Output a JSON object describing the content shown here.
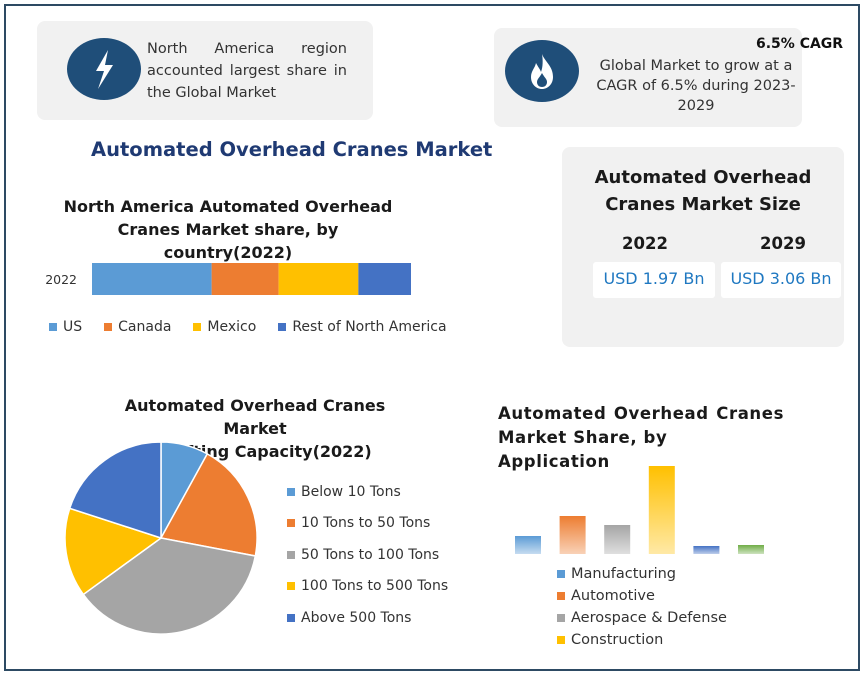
{
  "info_left": {
    "text_line1": "North America region",
    "text_line2": "accounted largest share in",
    "text_line3": "the Global Market",
    "icon": "lightning-bolt-icon"
  },
  "info_right": {
    "cagr_label": "6.5% CAGR",
    "text_line1": "Global Market to grow at a",
    "text_line2": "CAGR of 6.5% during 2023-",
    "text_line3": "2029",
    "icon": "flame-icon"
  },
  "main_title": "Automated Overhead Cranes Market",
  "market_size": {
    "title_line1": "Automated Overhead",
    "title_line2": "Cranes Market Size",
    "year1": "2022",
    "value1": "USD 1.97 Bn",
    "year2": "2029",
    "value2": "USD 3.06 Bn"
  },
  "colors": {
    "blue": "#5b9bd5",
    "orange": "#ed7d31",
    "gray": "#a5a5a5",
    "yellow": "#ffc000",
    "dark_blue": "#4472c4",
    "green": "#70ad47",
    "icon_bg": "#1f4e79"
  },
  "chart_data": [
    {
      "type": "bar",
      "orientation": "horizontal-stacked",
      "title_line1": "North America Automated Overhead",
      "title_line2": "Cranes Market share, by country(2022)",
      "categories": [
        "2022"
      ],
      "series": [
        {
          "name": "US",
          "values": [
            37.5
          ]
        },
        {
          "name": "Canada",
          "values": [
            21
          ]
        },
        {
          "name": "Mexico",
          "values": [
            25
          ]
        },
        {
          "name": "Rest of North America",
          "values": [
            16.5
          ]
        }
      ],
      "legend_position": "bottom"
    },
    {
      "type": "pie",
      "title_line1": "Automated Overhead Cranes Market",
      "title_line2": "by, Lifting Capacity(2022)",
      "labels": [
        "Below 10 Tons",
        "10 Tons to 50 Tons",
        "50 Tons to 100 Tons",
        "100 Tons to 500 Tons",
        "Above 500 Tons"
      ],
      "values": [
        8,
        20,
        37,
        15,
        20
      ],
      "legend_position": "right"
    },
    {
      "type": "bar",
      "title_line1": "Automated Overhead Cranes",
      "title_line2": "Market Share, by Application",
      "series": [
        {
          "name": "Manufacturing",
          "values": [
            18
          ]
        },
        {
          "name": "Automotive",
          "values": [
            38
          ]
        },
        {
          "name": "Aerospace & Defense",
          "values": [
            29
          ]
        },
        {
          "name": "Construction",
          "values": [
            88
          ]
        },
        {
          "name": "",
          "values": [
            8
          ]
        },
        {
          "name": "",
          "values": [
            9
          ]
        }
      ],
      "legend_entries": [
        "Manufacturing",
        "Automotive",
        "Aerospace & Defense",
        "Construction"
      ],
      "legend_position": "bottom"
    }
  ]
}
